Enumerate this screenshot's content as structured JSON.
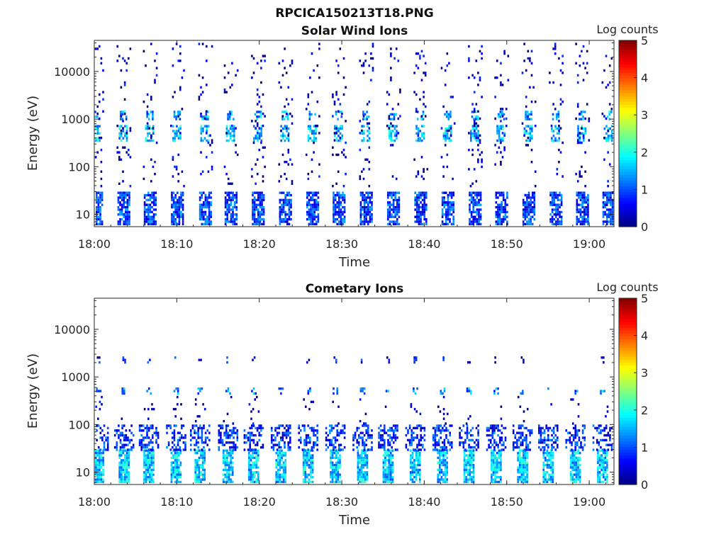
{
  "figure": {
    "title": "RPCICA150213T18.PNG"
  },
  "chart_data": [
    {
      "type": "heatmap",
      "title": "Solar Wind Ions",
      "xlabel": "Time",
      "ylabel": "Energy (eV)",
      "yscale": "log",
      "ylim": [
        5.5,
        45000
      ],
      "xlim": [
        "18:00",
        "19:03"
      ],
      "x_ticks": [
        "18:00",
        "18:10",
        "18:20",
        "18:30",
        "18:40",
        "18:50",
        "19:00"
      ],
      "y_ticks": [
        "10",
        "100",
        "1000",
        "10000"
      ],
      "colorbar": {
        "label": "Log counts",
        "range": [
          0,
          5
        ],
        "ticks": [
          "0",
          "1",
          "2",
          "3",
          "4",
          "5"
        ],
        "colormap": "jet"
      },
      "pulse_minutes": [
        0.2,
        3.5,
        6.7,
        10,
        13.4,
        16.5,
        19.8,
        23.1,
        26.4,
        29.6,
        32.9,
        36.2,
        39.5,
        42.8,
        46.1,
        49.3,
        52.6,
        55.9,
        59.1,
        62.3
      ],
      "bands": [
        {
          "energy": [
            6,
            30
          ],
          "level": 0.9,
          "span_min": 1.4,
          "density": 0.75
        },
        {
          "energy": [
            1000,
            1500
          ],
          "level": 1.4,
          "span_min": 0.8,
          "density": 0.55
        },
        {
          "energy": [
            350,
            750
          ],
          "level": 1.6,
          "span_min": 1.1,
          "density": 0.6
        },
        {
          "energy": [
            40,
            40000
          ],
          "level": 0.3,
          "span_min": 1.6,
          "density": 0.07
        }
      ]
    },
    {
      "type": "heatmap",
      "title": "Cometary Ions",
      "xlabel": "Time",
      "ylabel": "Energy (eV)",
      "yscale": "log",
      "ylim": [
        5.5,
        45000
      ],
      "xlim": [
        "18:00",
        "19:03"
      ],
      "x_ticks": [
        "18:00",
        "18:10",
        "18:20",
        "18:30",
        "18:40",
        "18:50",
        "19:00"
      ],
      "y_ticks": [
        "10",
        "100",
        "1000",
        "10000"
      ],
      "colorbar": {
        "label": "Log counts",
        "range": [
          0,
          5
        ],
        "ticks": [
          "0",
          "1",
          "2",
          "3",
          "4",
          "5"
        ],
        "colormap": "jet"
      },
      "pulse_minutes": [
        0.5,
        3.6,
        6.6,
        9.9,
        12.8,
        16.2,
        19.3,
        22.6,
        25.9,
        29.2,
        32.5,
        35.6,
        38.9,
        42.2,
        45.4,
        48.7,
        51.9,
        55.0,
        58.3,
        61.6
      ],
      "bands": [
        {
          "energy": [
            6,
            30
          ],
          "level": 1.6,
          "span_min": 1.3,
          "density": 0.85
        },
        {
          "energy": [
            30,
            100
          ],
          "level": 0.8,
          "span_min": 2.4,
          "density": 0.45
        },
        {
          "energy": [
            2000,
            2700
          ],
          "level": 0.6,
          "span_min": 0.4,
          "density": 0.35
        },
        {
          "energy": [
            450,
            600
          ],
          "level": 1.2,
          "span_min": 0.6,
          "density": 0.35
        },
        {
          "energy": [
            100,
            400
          ],
          "level": 0.3,
          "span_min": 1.2,
          "density": 0.06
        }
      ]
    }
  ]
}
